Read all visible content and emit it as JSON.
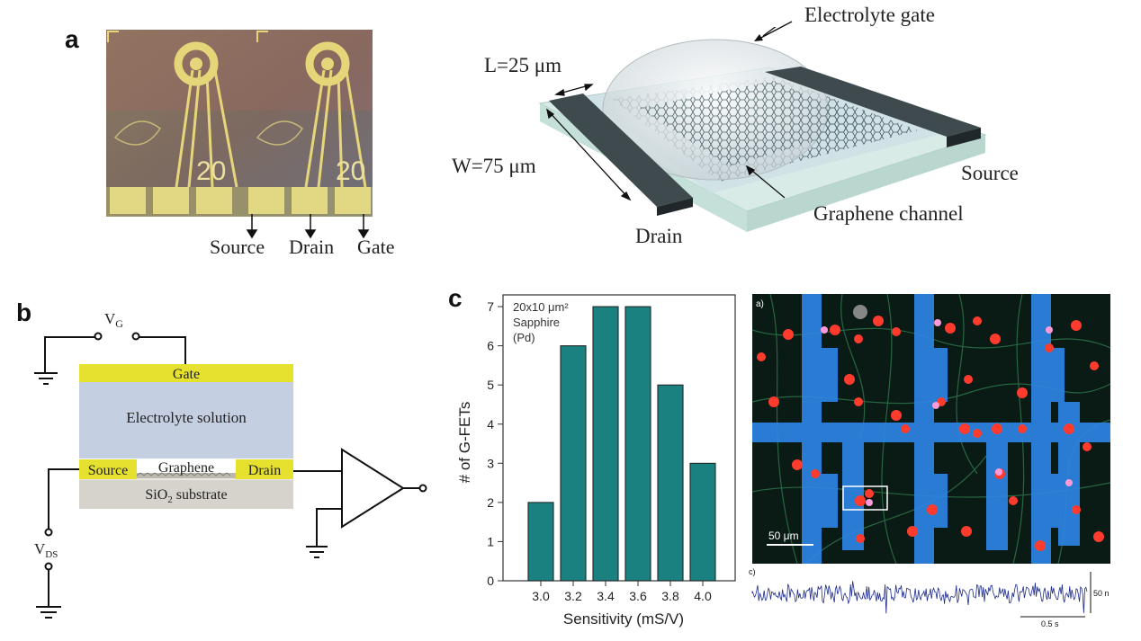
{
  "panel_letters": {
    "a": "a",
    "b": "b",
    "c": "c"
  },
  "panel_a": {
    "photo_numbers": [
      "20",
      "20"
    ],
    "photo_labels": {
      "source": "Source",
      "drain": "Drain",
      "gate": "Gate"
    },
    "device": {
      "electrolyte_gate": "Electrolyte gate",
      "length": "L=25 μm",
      "width": "W=75 μm",
      "source": "Source",
      "drain": "Drain",
      "graphene_channel": "Graphene channel"
    }
  },
  "panel_b": {
    "vg_main": "V",
    "vg_sub": "G",
    "gate": "Gate",
    "electrolyte": "Electrolyte solution",
    "source": "Source",
    "graphene": "Graphene",
    "drain": "Drain",
    "substrate_main": "SiO",
    "substrate_sub": "2",
    "substrate_rest": " substrate",
    "vds_main": "V",
    "vds_sub": "DS",
    "colors": {
      "metal": "#e6e02e",
      "electrolyte": "#c5cfe2",
      "substrate": "#d6d2cc"
    }
  },
  "panel_c": {
    "annotation_lines": [
      "20x10 μm²",
      "Sapphire",
      "(Pd)"
    ],
    "micrograph": {
      "label_a": "a)",
      "scale_bar": "50 μm",
      "label_c": "c)",
      "trace_scale_y": "50 n",
      "trace_scale_x": "0.5 s"
    }
  },
  "chart_data": {
    "type": "bar",
    "categories": [
      "3.0",
      "3.2",
      "3.4",
      "3.6",
      "3.8",
      "4.0"
    ],
    "values": [
      2,
      6,
      7,
      7,
      5,
      3
    ],
    "xlabel": "Sensitivity (mS/V)",
    "ylabel": "# of G-FETs",
    "ylim": [
      0,
      7.3
    ],
    "yticks": [
      "0",
      "1",
      "2",
      "3",
      "4",
      "5",
      "6",
      "7"
    ],
    "grid": false,
    "bar_color": "#1a8080"
  }
}
